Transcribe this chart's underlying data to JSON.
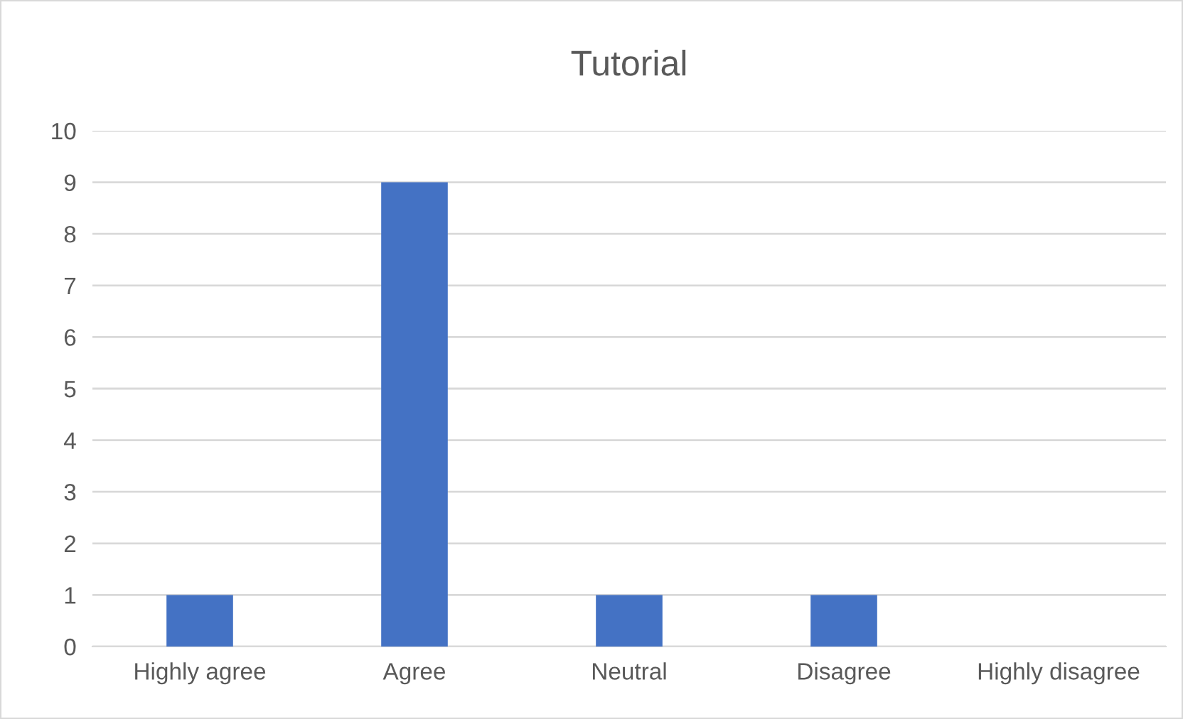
{
  "chart_data": {
    "type": "bar",
    "title": "Tutorial",
    "categories": [
      "Highly agree",
      "Agree",
      "Neutral",
      "Disagree",
      "Highly disagree"
    ],
    "values": [
      1,
      9,
      1,
      1,
      0
    ],
    "color": "#4472c4",
    "ylim": [
      0,
      10
    ],
    "yticks": [
      0,
      1,
      2,
      3,
      4,
      5,
      6,
      7,
      8,
      9,
      10
    ],
    "grid": "y"
  }
}
